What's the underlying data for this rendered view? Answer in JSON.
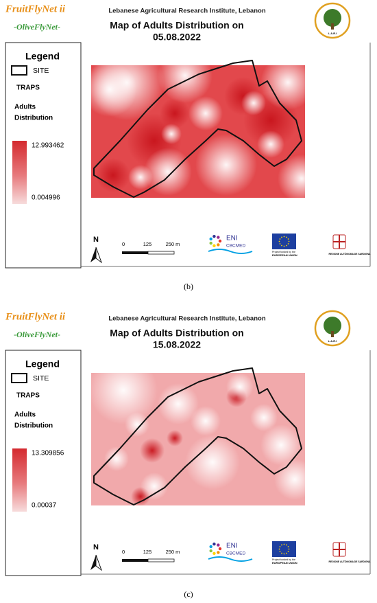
{
  "panels": [
    {
      "header": {
        "brand": "FruitFlyNet ii",
        "project": "-OliveFlyNet-",
        "institute": "Lebanese Agricultural Research Institute, Lebanon",
        "title_lines": [
          "Map of Adults Distribution on",
          "05.08.2022"
        ],
        "logo_text": "L.A.R.I"
      },
      "legend": {
        "title": "Legend",
        "site": "SITE",
        "traps": "TRAPS",
        "field_lines": [
          "Adults",
          "Distribution"
        ],
        "max": "12.993462",
        "min": "0.004996"
      },
      "scale": [
        "0",
        "125",
        "250 m"
      ],
      "north": "N",
      "footer": {
        "eni": "ENI",
        "cbcmed": "CBCMED",
        "eu_note": "Project funded by the",
        "eu": "EUROPEAN UNION",
        "sardinia": "REGIONE AUTÒNOMA DE SARDIGNA"
      },
      "caption": "(b)"
    },
    {
      "header": {
        "brand": "FruitFlyNet ii",
        "project": "-OliveFlyNet-",
        "institute": "Lebanese Agricultural Research Institute, Lebanon",
        "title_lines": [
          "Map of Adults Distribution on",
          "15.08.2022"
        ],
        "logo_text": "L.A.R.I"
      },
      "legend": {
        "title": "Legend",
        "site": "SITE",
        "traps": "TRAPS",
        "field_lines": [
          "Adults",
          "Distribution"
        ],
        "max": "13.309856",
        "min": "0.00037"
      },
      "scale": [
        "0",
        "125",
        "250 m"
      ],
      "north": "N",
      "footer": {
        "eni": "ENI",
        "cbcmed": "CBCMED",
        "eu_note": "Project funded by the",
        "eu": "EUROPEAN UNION",
        "sardinia": "REGIONE AUTÒNOMA DE SARDIGNA"
      },
      "caption": "(c)"
    }
  ]
}
